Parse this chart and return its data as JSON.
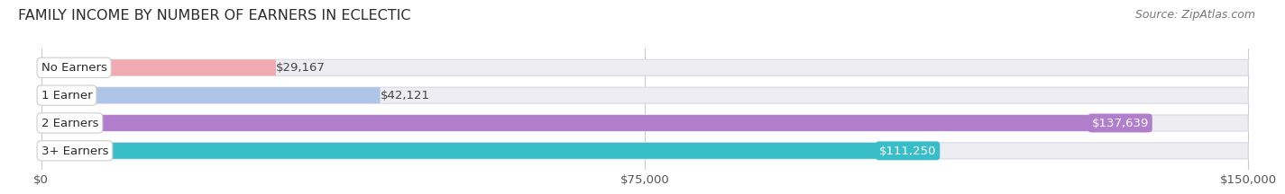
{
  "title": "FAMILY INCOME BY NUMBER OF EARNERS IN ECLECTIC",
  "source": "Source: ZipAtlas.com",
  "categories": [
    "No Earners",
    "1 Earner",
    "2 Earners",
    "3+ Earners"
  ],
  "values": [
    29167,
    42121,
    137639,
    111250
  ],
  "bar_colors": [
    "#f2aab2",
    "#afc5e8",
    "#b07ecb",
    "#38bec8"
  ],
  "label_colors": [
    "#555555",
    "#555555",
    "#ffffff",
    "#ffffff"
  ],
  "x_max": 150000,
  "x_ticks": [
    0,
    75000,
    150000
  ],
  "x_tick_labels": [
    "$0",
    "$75,000",
    "$150,000"
  ],
  "background_color": "#ffffff",
  "bar_bg_color": "#ededf2",
  "bar_bg_outline": "#dddde8",
  "title_fontsize": 11.5,
  "source_fontsize": 9,
  "label_fontsize": 9.5,
  "tick_fontsize": 9.5,
  "category_fontsize": 9.5
}
